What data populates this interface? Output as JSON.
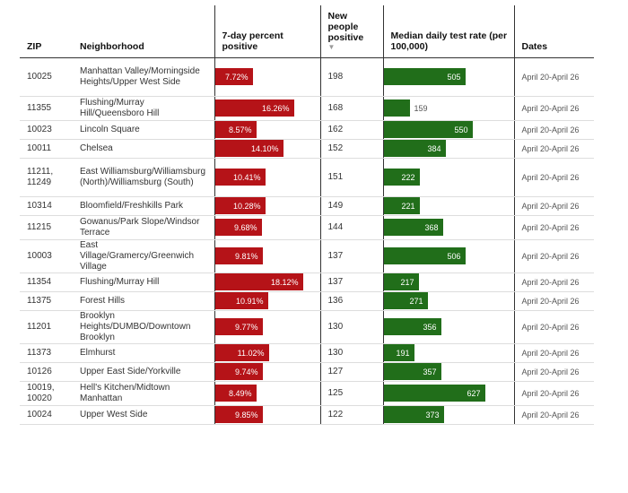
{
  "chart_data": {
    "type": "table",
    "columns": {
      "zip": "ZIP",
      "neighborhood": "Neighborhood",
      "pct_positive": "7-day percent positive",
      "new_positive": "New people positive",
      "test_rate": "Median daily test rate (per 100,000)",
      "dates": "Dates"
    },
    "sort_indicator": "▼",
    "scales": {
      "pct_max": 20,
      "rate_max": 700
    },
    "rows": [
      {
        "zip": "10025",
        "neighborhood": "Manhattan Valley/Morningside Heights/Upper West Side",
        "pct": 7.72,
        "pct_label": "7.72%",
        "new": "198",
        "rate": 505,
        "rate_label": "505",
        "dates": "April 20-April 26"
      },
      {
        "zip": "11355",
        "neighborhood": "Flushing/Murray Hill/Queensboro Hill",
        "pct": 16.26,
        "pct_label": "16.26%",
        "new": "168",
        "rate": 159,
        "rate_label": "159",
        "dates": "April 20-April 26"
      },
      {
        "zip": "10023",
        "neighborhood": "Lincoln Square",
        "pct": 8.57,
        "pct_label": "8.57%",
        "new": "162",
        "rate": 550,
        "rate_label": "550",
        "dates": "April 20-April 26"
      },
      {
        "zip": "10011",
        "neighborhood": "Chelsea",
        "pct": 14.1,
        "pct_label": "14.10%",
        "new": "152",
        "rate": 384,
        "rate_label": "384",
        "dates": "April 20-April 26"
      },
      {
        "zip": "11211, 11249",
        "neighborhood": "East Williamsburg/Williamsburg (North)/Williamsburg (South)",
        "pct": 10.41,
        "pct_label": "10.41%",
        "new": "151",
        "rate": 222,
        "rate_label": "222",
        "dates": "April 20-April 26"
      },
      {
        "zip": "10314",
        "neighborhood": "Bloomfield/Freshkills Park",
        "pct": 10.28,
        "pct_label": "10.28%",
        "new": "149",
        "rate": 221,
        "rate_label": "221",
        "dates": "April 20-April 26"
      },
      {
        "zip": "11215",
        "neighborhood": "Gowanus/Park Slope/Windsor Terrace",
        "pct": 9.68,
        "pct_label": "9.68%",
        "new": "144",
        "rate": 368,
        "rate_label": "368",
        "dates": "April 20-April 26"
      },
      {
        "zip": "10003",
        "neighborhood": "East Village/Gramercy/Greenwich Village",
        "pct": 9.81,
        "pct_label": "9.81%",
        "new": "137",
        "rate": 506,
        "rate_label": "506",
        "dates": "April 20-April 26"
      },
      {
        "zip": "11354",
        "neighborhood": "Flushing/Murray Hill",
        "pct": 18.12,
        "pct_label": "18.12%",
        "new": "137",
        "rate": 217,
        "rate_label": "217",
        "dates": "April 20-April 26"
      },
      {
        "zip": "11375",
        "neighborhood": "Forest Hills",
        "pct": 10.91,
        "pct_label": "10.91%",
        "new": "136",
        "rate": 271,
        "rate_label": "271",
        "dates": "April 20-April 26"
      },
      {
        "zip": "11201",
        "neighborhood": "Brooklyn Heights/DUMBO/Downtown Brooklyn",
        "pct": 9.77,
        "pct_label": "9.77%",
        "new": "130",
        "rate": 356,
        "rate_label": "356",
        "dates": "April 20-April 26"
      },
      {
        "zip": "11373",
        "neighborhood": "Elmhurst",
        "pct": 11.02,
        "pct_label": "11.02%",
        "new": "130",
        "rate": 191,
        "rate_label": "191",
        "dates": "April 20-April 26"
      },
      {
        "zip": "10126",
        "neighborhood": "Upper East Side/Yorkville",
        "pct": 9.74,
        "pct_label": "9.74%",
        "new": "127",
        "rate": 357,
        "rate_label": "357",
        "dates": "April 20-April 26"
      },
      {
        "zip": "10019, 10020",
        "neighborhood": "Hell's Kitchen/Midtown Manhattan",
        "pct": 8.49,
        "pct_label": "8.49%",
        "new": "125",
        "rate": 627,
        "rate_label": "627",
        "dates": "April 20-April 26"
      },
      {
        "zip": "10024",
        "neighborhood": "Upper West Side",
        "pct": 9.85,
        "pct_label": "9.85%",
        "new": "122",
        "rate": 373,
        "rate_label": "373",
        "dates": "April 20-April 26"
      }
    ]
  },
  "colors": {
    "positive_bar": "#b51318",
    "rate_bar": "#216e1a"
  }
}
